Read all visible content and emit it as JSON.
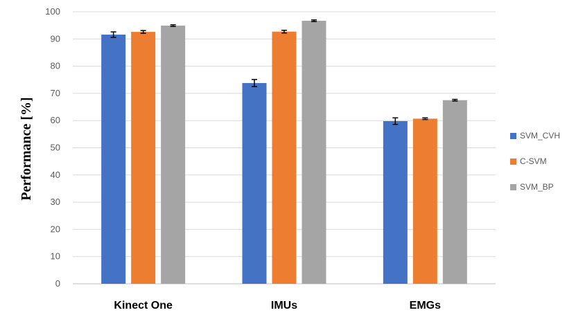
{
  "chart_data": {
    "type": "bar",
    "categories": [
      "Kinect One",
      "IMUs",
      "EMGs"
    ],
    "series": [
      {
        "name": "SVM_CVH",
        "color": "#4472c4",
        "values": [
          91.6,
          73.8,
          59.8
        ],
        "errors": [
          1.0,
          1.3,
          1.2
        ]
      },
      {
        "name": "C-SVM",
        "color": "#ed7d31",
        "values": [
          92.6,
          92.7,
          60.7
        ],
        "errors": [
          0.5,
          0.5,
          0.3
        ]
      },
      {
        "name": "SVM_BP",
        "color": "#a5a5a5",
        "values": [
          94.9,
          96.7,
          67.5
        ],
        "errors": [
          0.3,
          0.3,
          0.3
        ]
      }
    ],
    "xlabel": "",
    "ylabel": "Performance [%]",
    "ylim": [
      0,
      100
    ],
    "yticks": [
      0,
      10,
      20,
      30,
      40,
      50,
      60,
      70,
      80,
      90,
      100
    ],
    "grid": true,
    "legend_position": "right"
  }
}
